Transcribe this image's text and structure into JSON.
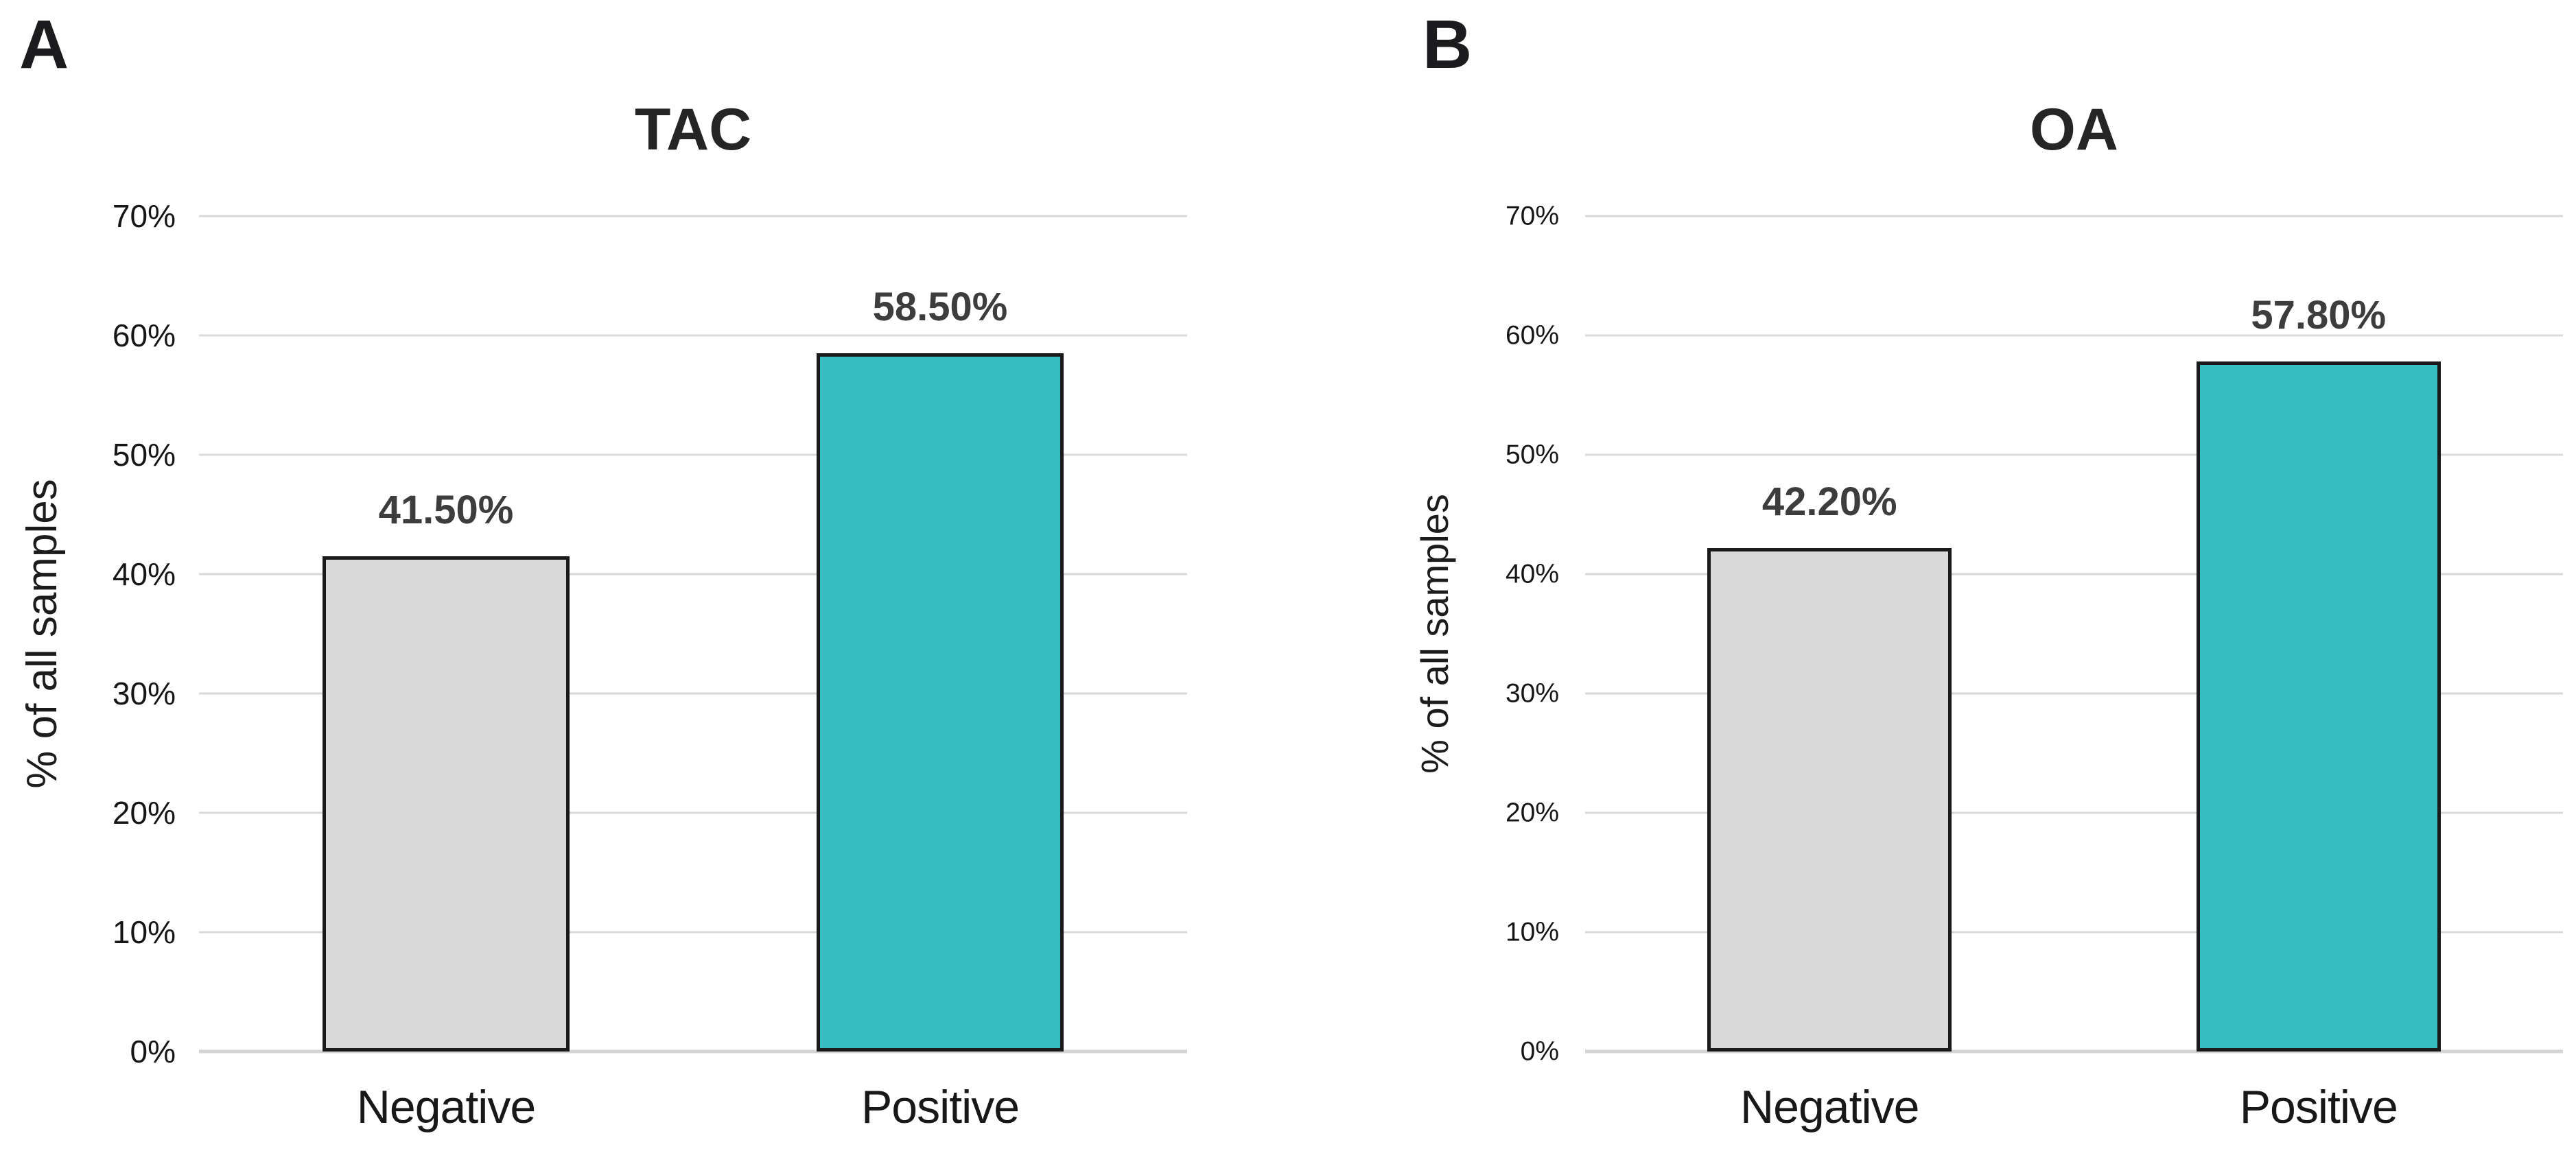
{
  "figure": {
    "background": "#ffffff",
    "panel_letters": [
      "A",
      "B"
    ]
  },
  "colors": {
    "background": "#ffffff",
    "gridline": "#d9d9d9",
    "negative_bar_fill": "#d9d9d9",
    "positive_bar_fill": "#35bdc2",
    "bar_border": "#1a1a1a",
    "value_label_text": "#3d3d3d",
    "axis_text": "#161616",
    "title_text": "#252525"
  },
  "chart_data": [
    {
      "type": "bar",
      "panel_label": "A",
      "title": "TAC",
      "xlabel": "",
      "ylabel": "% of all samples",
      "categories": [
        "Negative",
        "Positive"
      ],
      "values": [
        41.5,
        58.5
      ],
      "value_labels": [
        "41.50%",
        "58.50%"
      ],
      "ylim": [
        0,
        70
      ],
      "ytick_step": 10,
      "ytick_labels": [
        "0%",
        "10%",
        "20%",
        "30%",
        "40%",
        "50%",
        "60%",
        "70%"
      ],
      "grid": true,
      "legend": "none",
      "bar_colors": [
        "#d9d9d9",
        "#35bdc2"
      ],
      "bar_border_color": "#1a1a1a"
    },
    {
      "type": "bar",
      "panel_label": "B",
      "title": "OA",
      "xlabel": "",
      "ylabel": "% of all samples",
      "categories": [
        "Negative",
        "Positive"
      ],
      "values": [
        42.2,
        57.8
      ],
      "value_labels": [
        "42.20%",
        "57.80%"
      ],
      "ylim": [
        0,
        70
      ],
      "ytick_step": 10,
      "ytick_labels": [
        "0%",
        "10%",
        "20%",
        "30%",
        "40%",
        "50%",
        "60%",
        "70%"
      ],
      "grid": true,
      "legend": "none",
      "bar_colors": [
        "#d9d9d9",
        "#35bdc2"
      ],
      "bar_border_color": "#1a1a1a"
    }
  ]
}
